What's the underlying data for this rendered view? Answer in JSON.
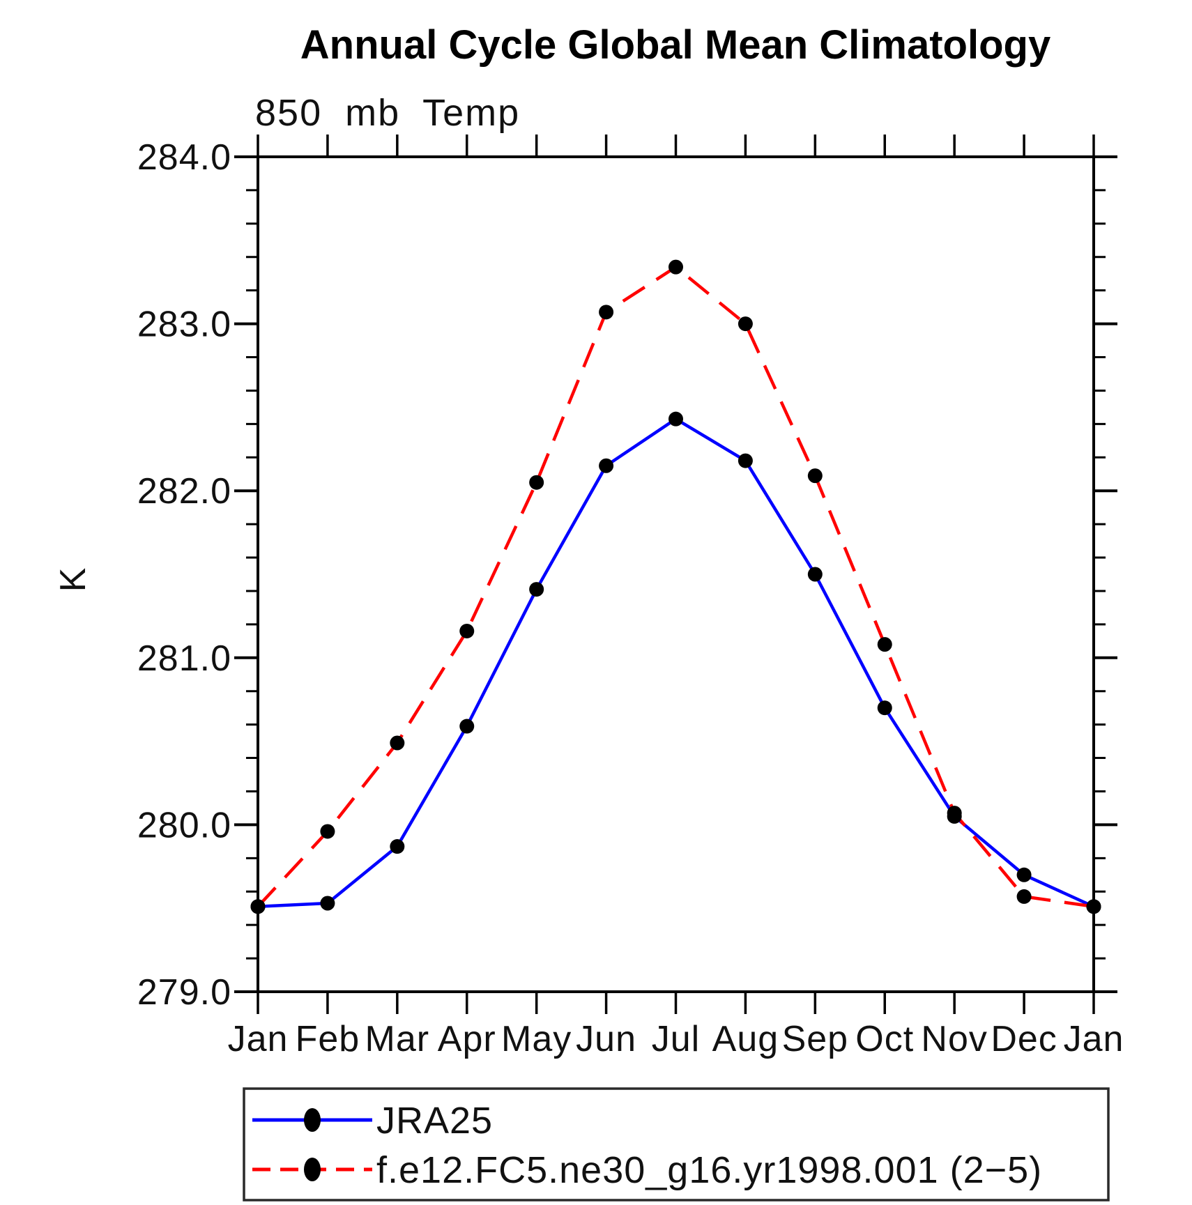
{
  "page": {
    "background": "#ffffff",
    "frame_color": "#000000",
    "text_color": "#111111"
  },
  "header": {
    "title": "Annual Cycle Global Mean Climatology",
    "subtitle": "850 mb Temp"
  },
  "y_axis": {
    "label": "K",
    "min": 279.0,
    "max": 284.0,
    "major_step": 1.0,
    "minor_step": 0.2,
    "tick_labels": [
      "279.0",
      "280.0",
      "281.0",
      "282.0",
      "283.0",
      "284.0"
    ]
  },
  "x_axis": {
    "tick_labels": [
      "Jan",
      "Feb",
      "Mar",
      "Apr",
      "May",
      "Jun",
      "Jul",
      "Aug",
      "Sep",
      "Oct",
      "Nov",
      "Dec",
      "Jan"
    ]
  },
  "legend": {
    "entries": [
      {
        "label": "JRA25",
        "line_color": "#0000ff",
        "line_style": "solid",
        "marker": "black-ellipse"
      },
      {
        "label": "f.e12.FC5.ne30_g16.yr1998.001 (2−5)",
        "line_color": "#ff0000",
        "line_style": "dashed",
        "marker": "black-ellipse"
      }
    ]
  },
  "chart_data": {
    "type": "line",
    "title": "850 mb Temp",
    "suptitle": "Annual Cycle Global Mean Climatology",
    "xlabel": "",
    "ylabel": "K",
    "ylim": [
      279.0,
      284.0
    ],
    "y_major_step": 1.0,
    "y_minor_step": 0.2,
    "grid": false,
    "legend_position": "bottom-left-box",
    "categories": [
      "Jan",
      "Feb",
      "Mar",
      "Apr",
      "May",
      "Jun",
      "Jul",
      "Aug",
      "Sep",
      "Oct",
      "Nov",
      "Dec",
      "Jan"
    ],
    "series": [
      {
        "name": "JRA25",
        "color": "#0000ff",
        "line_style": "solid",
        "marker": "circle",
        "marker_color": "#000000",
        "values": [
          279.51,
          279.53,
          279.87,
          280.59,
          281.41,
          282.15,
          282.43,
          282.18,
          281.5,
          280.7,
          280.05,
          279.7,
          279.51
        ]
      },
      {
        "name": "f.e12.FC5.ne30_g16.yr1998.001 (2−5)",
        "color": "#ff0000",
        "line_style": "dashed",
        "marker": "circle",
        "marker_color": "#000000",
        "values": [
          279.51,
          279.96,
          280.49,
          281.16,
          282.05,
          283.07,
          283.34,
          283.0,
          282.09,
          281.08,
          280.07,
          279.57,
          279.51
        ]
      }
    ]
  }
}
